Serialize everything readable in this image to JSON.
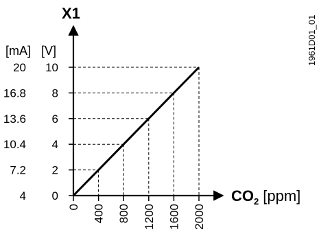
{
  "chart_data": {
    "type": "line",
    "title": "X1",
    "x_axis_label": {
      "main": "CO",
      "subscript": "2",
      "unit": "[ppm]"
    },
    "y_axis_units": {
      "mA": "[mA]",
      "V": "[V]"
    },
    "figure_id": "1961D01_01",
    "x_ticks": [
      "0",
      "400",
      "800",
      "1200",
      "1600",
      "2000"
    ],
    "y_ticks_v": [
      "0",
      "2",
      "4",
      "6",
      "8",
      "10"
    ],
    "y_ticks_ma": [
      "4",
      "7.2",
      "10.4",
      "13.6",
      "16.8",
      "20"
    ],
    "xlim": [
      0,
      2000
    ],
    "ylim": [
      0,
      10
    ],
    "series": [
      {
        "points": [
          {
            "x": 0,
            "y": 0
          },
          {
            "x": 2000,
            "y": 10
          }
        ]
      }
    ],
    "guide_points": [
      {
        "x": 400,
        "y": 2
      },
      {
        "x": 800,
        "y": 4
      },
      {
        "x": 1200,
        "y": 6
      },
      {
        "x": 1600,
        "y": 8
      },
      {
        "x": 2000,
        "y": 10
      }
    ],
    "colors": {
      "line": "#000000",
      "guides": "#000000",
      "axes": "#000000"
    }
  }
}
